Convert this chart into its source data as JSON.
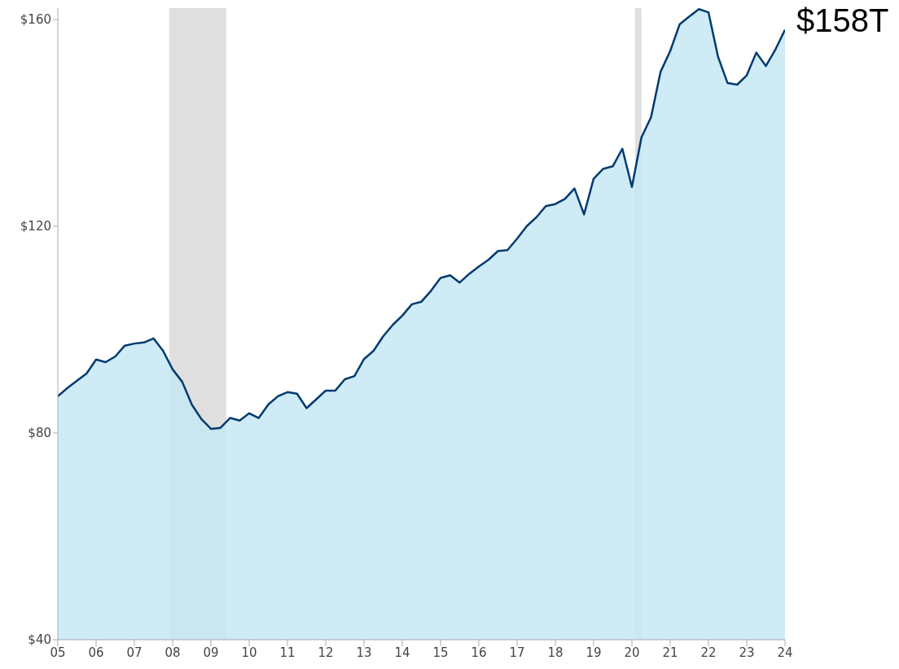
{
  "chart_data": {
    "type": "area",
    "x": [
      2005,
      2005.25,
      2005.5,
      2005.75,
      2006,
      2006.25,
      2006.5,
      2006.75,
      2007,
      2007.25,
      2007.5,
      2007.75,
      2008,
      2008.25,
      2008.5,
      2008.75,
      2009,
      2009.25,
      2009.5,
      2009.75,
      2010,
      2010.25,
      2010.5,
      2010.75,
      2011,
      2011.25,
      2011.5,
      2011.75,
      2012,
      2012.25,
      2012.5,
      2012.75,
      2013,
      2013.25,
      2013.5,
      2013.75,
      2014,
      2014.25,
      2014.5,
      2014.75,
      2015,
      2015.25,
      2015.5,
      2015.75,
      2016,
      2016.25,
      2016.5,
      2016.75,
      2017,
      2017.25,
      2017.5,
      2017.75,
      2018,
      2018.25,
      2018.5,
      2018.75,
      2019,
      2019.25,
      2019.5,
      2019.75,
      2020,
      2020.25,
      2020.5,
      2020.75,
      2021,
      2021.25,
      2021.5,
      2021.75,
      2022,
      2022.25,
      2022.5,
      2022.75,
      2023,
      2023.25,
      2023.5,
      2023.75,
      2024
    ],
    "series": [
      {
        "color": "#003a70",
        "values": [
          87.1,
          88.7,
          90.1,
          91.5,
          94.2,
          93.7,
          94.8,
          96.9,
          97.3,
          97.5,
          98.3,
          95.9,
          92.3,
          89.9,
          85.5,
          82.7,
          80.8,
          81.0,
          82.9,
          82.4,
          83.8,
          82.9,
          85.5,
          87.1,
          87.9,
          87.6,
          84.8,
          86.5,
          88.2,
          88.2,
          90.4,
          91.0,
          94.3,
          95.9,
          98.7,
          100.9,
          102.7,
          104.9,
          105.4,
          107.5,
          110.0,
          110.5,
          109.1,
          110.8,
          112.2,
          113.5,
          115.2,
          115.4,
          117.6,
          120.0,
          121.7,
          123.9,
          124.3,
          125.3,
          127.3,
          122.3,
          129.2,
          131.1,
          131.6,
          135.0,
          127.6,
          137.2,
          141.1,
          149.9,
          153.9,
          159.1,
          160.6,
          162.0,
          161.4,
          152.8,
          147.7,
          147.4,
          149.2,
          153.6,
          151.0,
          154.2,
          158.0
        ]
      }
    ],
    "xlim": [
      2005,
      2024
    ],
    "xticks": [
      {
        "value": 2005,
        "label": "05"
      },
      {
        "value": 2006,
        "label": "06"
      },
      {
        "value": 2007,
        "label": "07"
      },
      {
        "value": 2008,
        "label": "08"
      },
      {
        "value": 2009,
        "label": "09"
      },
      {
        "value": 2010,
        "label": "10"
      },
      {
        "value": 2011,
        "label": "11"
      },
      {
        "value": 2012,
        "label": "12"
      },
      {
        "value": 2013,
        "label": "13"
      },
      {
        "value": 2014,
        "label": "14"
      },
      {
        "value": 2015,
        "label": "15"
      },
      {
        "value": 2016,
        "label": "16"
      },
      {
        "value": 2017,
        "label": "17"
      },
      {
        "value": 2018,
        "label": "18"
      },
      {
        "value": 2019,
        "label": "19"
      },
      {
        "value": 2020,
        "label": "20"
      },
      {
        "value": 2021,
        "label": "21"
      },
      {
        "value": 2022,
        "label": "22"
      },
      {
        "value": 2023,
        "label": "23"
      },
      {
        "value": 2024,
        "label": "24"
      }
    ],
    "ylim": [
      40,
      162.2
    ],
    "yticks": [
      {
        "value": 40,
        "label": "$40"
      },
      {
        "value": 80,
        "label": "$80"
      },
      {
        "value": 120,
        "label": "$120"
      },
      {
        "value": 160,
        "label": "$160"
      }
    ],
    "bands": [
      {
        "axis": "x",
        "from": 2007.91,
        "to": 2009.4,
        "color": "#c0c0c0"
      },
      {
        "axis": "x",
        "from": 2020.08,
        "to": 2020.25,
        "color": "#c0c0c0"
      }
    ],
    "annotations": [
      {
        "text": "$158T",
        "x": 2024,
        "y": 158
      }
    ],
    "grid": false,
    "legend": false
  }
}
